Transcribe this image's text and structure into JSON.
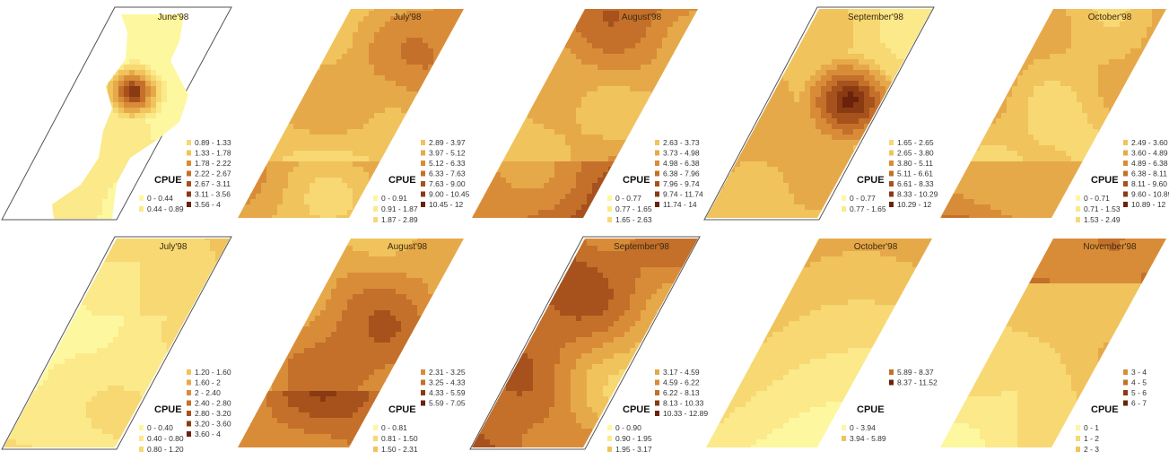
{
  "panels": [
    {
      "title": "June'98",
      "frame": true,
      "style": "blob",
      "legend_col1": [
        "0 - 0.44",
        "0.44 - 0.89"
      ],
      "legend_col2": [
        "0.89 - 1.33",
        "1.33 - 1.78",
        "1.78 - 2.22",
        "2.22 - 2.67",
        "2.67 - 3.11",
        "3.11 - 3.56",
        "3.56 - 4"
      ]
    },
    {
      "title": "July'98",
      "frame": false,
      "style": "medium",
      "legend_col1": [
        "0 - 0.91",
        "0.91 - 1.87",
        "1.87 - 2.89"
      ],
      "legend_col2": [
        "2.89 - 3.97",
        "3.97 - 5.12",
        "5.12 - 6.33",
        "6.33 - 7.63",
        "7.63 - 9.00",
        "9.00 - 10.45",
        "10.45 - 12"
      ]
    },
    {
      "title": "August'98",
      "frame": false,
      "style": "medium",
      "legend_col1": [
        "0 - 0.77",
        "0.77 - 1.65",
        "1.65 - 2.63"
      ],
      "legend_col2": [
        "2.63 - 3.73",
        "3.73 - 4.98",
        "4.98 - 6.38",
        "6.38 - 7.96",
        "7.96 - 9.74",
        "9.74 - 11.74",
        "11.74 - 14"
      ]
    },
    {
      "title": "September'98",
      "frame": true,
      "style": "hotspot",
      "legend_col1": [
        "0 - 0.77",
        "0.77 - 1.65"
      ],
      "legend_col2": [
        "1.65 - 2.65",
        "2.65 - 3.80",
        "3.80 - 5.11",
        "5.11 - 6.61",
        "6.61 - 8.33",
        "8.33 - 10.29",
        "10.29 - 12"
      ]
    },
    {
      "title": "October'98",
      "frame": false,
      "style": "medium",
      "legend_col1": [
        "0 - 0.71",
        "0.71 - 1.53",
        "1.53 - 2.49"
      ],
      "legend_col2": [
        "2.49 - 3.60",
        "3.60 - 4.89",
        "4.89 - 6.38",
        "6.38 - 8.11",
        "8.11 - 9.60",
        "9.60 - 10.89",
        "10.89 - 12"
      ]
    },
    {
      "title": "July'98",
      "frame": true,
      "style": "pale",
      "legend_col1": [
        "0 - 0.40",
        "0.40 - 0.80",
        "0.80 - 1.20"
      ],
      "legend_col2": [
        "1.20 - 1.60",
        "1.60 - 2",
        "2 - 2.40",
        "2.40 - 2.80",
        "2.80 - 3.20",
        "3.20 - 3.60",
        "3.60 - 4"
      ]
    },
    {
      "title": "August'98",
      "frame": false,
      "style": "medium",
      "legend_col1": [
        "0 - 0.81",
        "0.81 - 1.50",
        "1.50 - 2.31"
      ],
      "legend_col2": [
        "2.31 - 3.25",
        "3.25 - 4.33",
        "4.33 - 5.59",
        "5.59 - 7.05"
      ]
    },
    {
      "title": "September'98",
      "frame": true,
      "style": "dark",
      "legend_col1": [
        "0 - 0.90",
        "0.90 - 1.95",
        "1.95 - 3.17"
      ],
      "legend_col2": [
        "3.17 - 4.59",
        "4.59 - 6.22",
        "6.22 - 8.13",
        "8.13 - 10.33",
        "10.33 - 12.89"
      ]
    },
    {
      "title": "October'98",
      "frame": false,
      "style": "bands",
      "legend_col1": [
        "0 - 3.94",
        "3.94 - 5.89"
      ],
      "legend_col2": [
        "5.89 - 8.37",
        "8.37 - 11.52"
      ]
    },
    {
      "title": "November'98",
      "frame": false,
      "style": "light",
      "legend_col1": [
        "0 - 1",
        "1 - 2",
        "2 - 3"
      ],
      "legend_col2": [
        "3 - 4",
        "4 - 5",
        "5 - 6",
        "6 - 7"
      ]
    }
  ],
  "legend_title": "CPUE",
  "colors": {
    "ramp": [
      "#fdf7a0",
      "#fbe98a",
      "#f7d873",
      "#f0c35c",
      "#e6a94a",
      "#d98c38",
      "#c4702a",
      "#a7521d",
      "#8a3a12",
      "#6a220a"
    ],
    "frame": "#555555"
  }
}
